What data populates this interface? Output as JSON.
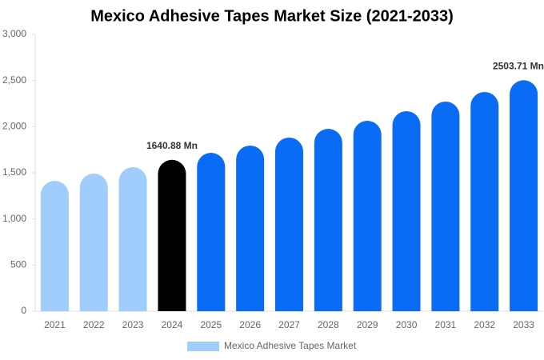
{
  "chart_data": {
    "type": "bar",
    "title": "Mexico Adhesive Tapes Market Size (2021-2033)",
    "categories": [
      "2021",
      "2022",
      "2023",
      "2024",
      "2025",
      "2026",
      "2027",
      "2028",
      "2029",
      "2030",
      "2031",
      "2032",
      "2033"
    ],
    "series": [
      {
        "name": "Mexico Adhesive Tapes Market",
        "color": "#a0cdfc",
        "colors": [
          "#a0cdfc",
          "#a0cdfc",
          "#a0cdfc",
          "#000000",
          "#0a6cf5",
          "#0a6cf5",
          "#0a6cf5",
          "#0a6cf5",
          "#0a6cf5",
          "#0a6cf5",
          "#0a6cf5",
          "#0a6cf5",
          "#0a6cf5"
        ],
        "values": [
          1413,
          1491,
          1561,
          1640.88,
          1717,
          1795,
          1882,
          1977,
          2064,
          2168,
          2272,
          2376,
          2503.71
        ],
        "value_labels": [
          null,
          null,
          null,
          "1640.88 Mn",
          null,
          null,
          null,
          null,
          null,
          null,
          null,
          null,
          "2503.71 Mn"
        ]
      }
    ],
    "ylim": [
      0,
      3000
    ],
    "yticks": [
      0,
      500,
      {
        "value": 1000,
        "label": "1,000"
      },
      {
        "value": 1500,
        "label": "1,500"
      },
      {
        "value": 2000,
        "label": "2,000"
      },
      {
        "value": 2500,
        "label": "2,500"
      },
      {
        "value": 3000,
        "label": "3,000"
      }
    ],
    "grid": false
  }
}
